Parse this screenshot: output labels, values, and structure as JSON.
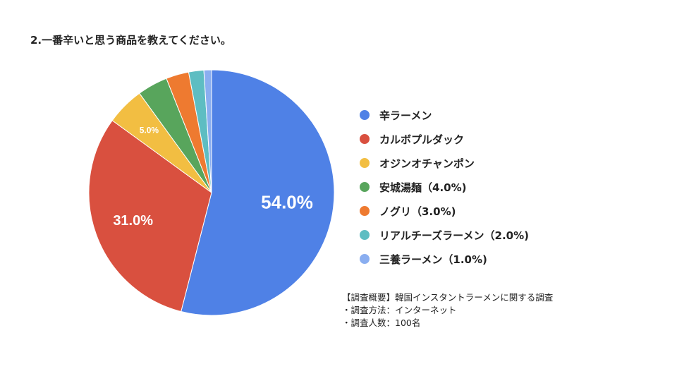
{
  "chart_data": {
    "type": "pie",
    "title": "2.一番辛いと思う商品を教えてください。",
    "start": "top, clockwise",
    "slices": [
      {
        "label": "辛ラーメン",
        "value": 54.0,
        "color": "#4f81e6",
        "data_label": "54.0%"
      },
      {
        "label": "カルボプルダック",
        "value": 31.0,
        "color": "#d9503f",
        "data_label": "31.0%"
      },
      {
        "label": "オジンオチャンポン",
        "value": 5.0,
        "color": "#f2be42",
        "data_label": "5.0%"
      },
      {
        "label": "安城湯麺（4.0%)",
        "value": 4.0,
        "color": "#58a55c",
        "data_label": ""
      },
      {
        "label": "ノグリ（3.0%)",
        "value": 3.0,
        "color": "#ee7a30",
        "data_label": ""
      },
      {
        "label": "リアルチーズラーメン（2.0%)",
        "value": 2.0,
        "color": "#5ebdc2",
        "data_label": ""
      },
      {
        "label": "三養ラーメン（1.0%)",
        "value": 1.0,
        "color": "#8aaef0",
        "data_label": ""
      }
    ],
    "legend_position": "right"
  },
  "note": {
    "lines": [
      "【調査概要】韓国インスタントラーメンに関する調査",
      "・調査方法：インターネット",
      "・調査人数：100名"
    ]
  }
}
